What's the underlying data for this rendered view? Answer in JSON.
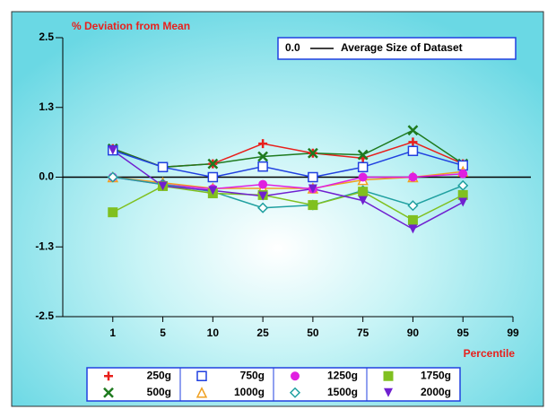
{
  "chart_data": {
    "type": "line",
    "y_axis_label": "% Deviation from Mean",
    "x_axis_label": "Percentile",
    "reference_line": {
      "value": 0,
      "value_label": "0.0",
      "label": "Average Size of Dataset"
    },
    "categories": [
      "1",
      "5",
      "10",
      "25",
      "50",
      "75",
      "90",
      "95",
      "99"
    ],
    "ylim": [
      -2.5,
      2.5
    ],
    "yticks": [
      -2.5,
      {
        "value": -1.25,
        "label": "-1.3"
      },
      {
        "value": 0,
        "label": "0.0"
      },
      {
        "value": 1.25,
        "label": "1.3"
      },
      2.5
    ],
    "series": [
      {
        "name": "250g",
        "color": "#e8201c",
        "marker": "plus",
        "values": [
          0.51,
          0.18,
          0.24,
          0.6,
          0.43,
          0.34,
          0.63,
          0.24,
          null
        ]
      },
      {
        "name": "500g",
        "color": "#1e7a1e",
        "marker": "cross",
        "values": [
          0.51,
          0.18,
          0.24,
          0.37,
          0.43,
          0.4,
          0.84,
          0.24,
          null
        ]
      },
      {
        "name": "750g",
        "color": "#2040e0",
        "marker": "square-open",
        "values": [
          0.48,
          0.18,
          0,
          0.19,
          0,
          0.18,
          0.47,
          0.21,
          null
        ]
      },
      {
        "name": "1000g",
        "color": "#f0a020",
        "marker": "triangle-open",
        "values": [
          0,
          -0.1,
          -0.2,
          -0.2,
          -0.2,
          -0.05,
          0,
          0.1,
          null
        ]
      },
      {
        "name": "1250g",
        "color": "#e020e0",
        "marker": "circle",
        "values": [
          0,
          -0.13,
          -0.21,
          -0.13,
          -0.21,
          0,
          0,
          0.06,
          null
        ]
      },
      {
        "name": "1500g",
        "color": "#20a0a0",
        "marker": "diamond-open",
        "values": [
          0,
          -0.13,
          -0.26,
          -0.55,
          -0.5,
          -0.24,
          -0.51,
          -0.15,
          null
        ]
      },
      {
        "name": "1750g",
        "color": "#80c020",
        "marker": "square",
        "values": [
          -0.63,
          -0.16,
          -0.29,
          -0.32,
          -0.5,
          -0.26,
          -0.77,
          -0.32,
          null
        ]
      },
      {
        "name": "2000g",
        "color": "#7020d0",
        "marker": "triangle-down",
        "values": [
          0.48,
          -0.16,
          -0.24,
          -0.34,
          -0.21,
          -0.42,
          -0.93,
          -0.45,
          null
        ]
      }
    ]
  }
}
